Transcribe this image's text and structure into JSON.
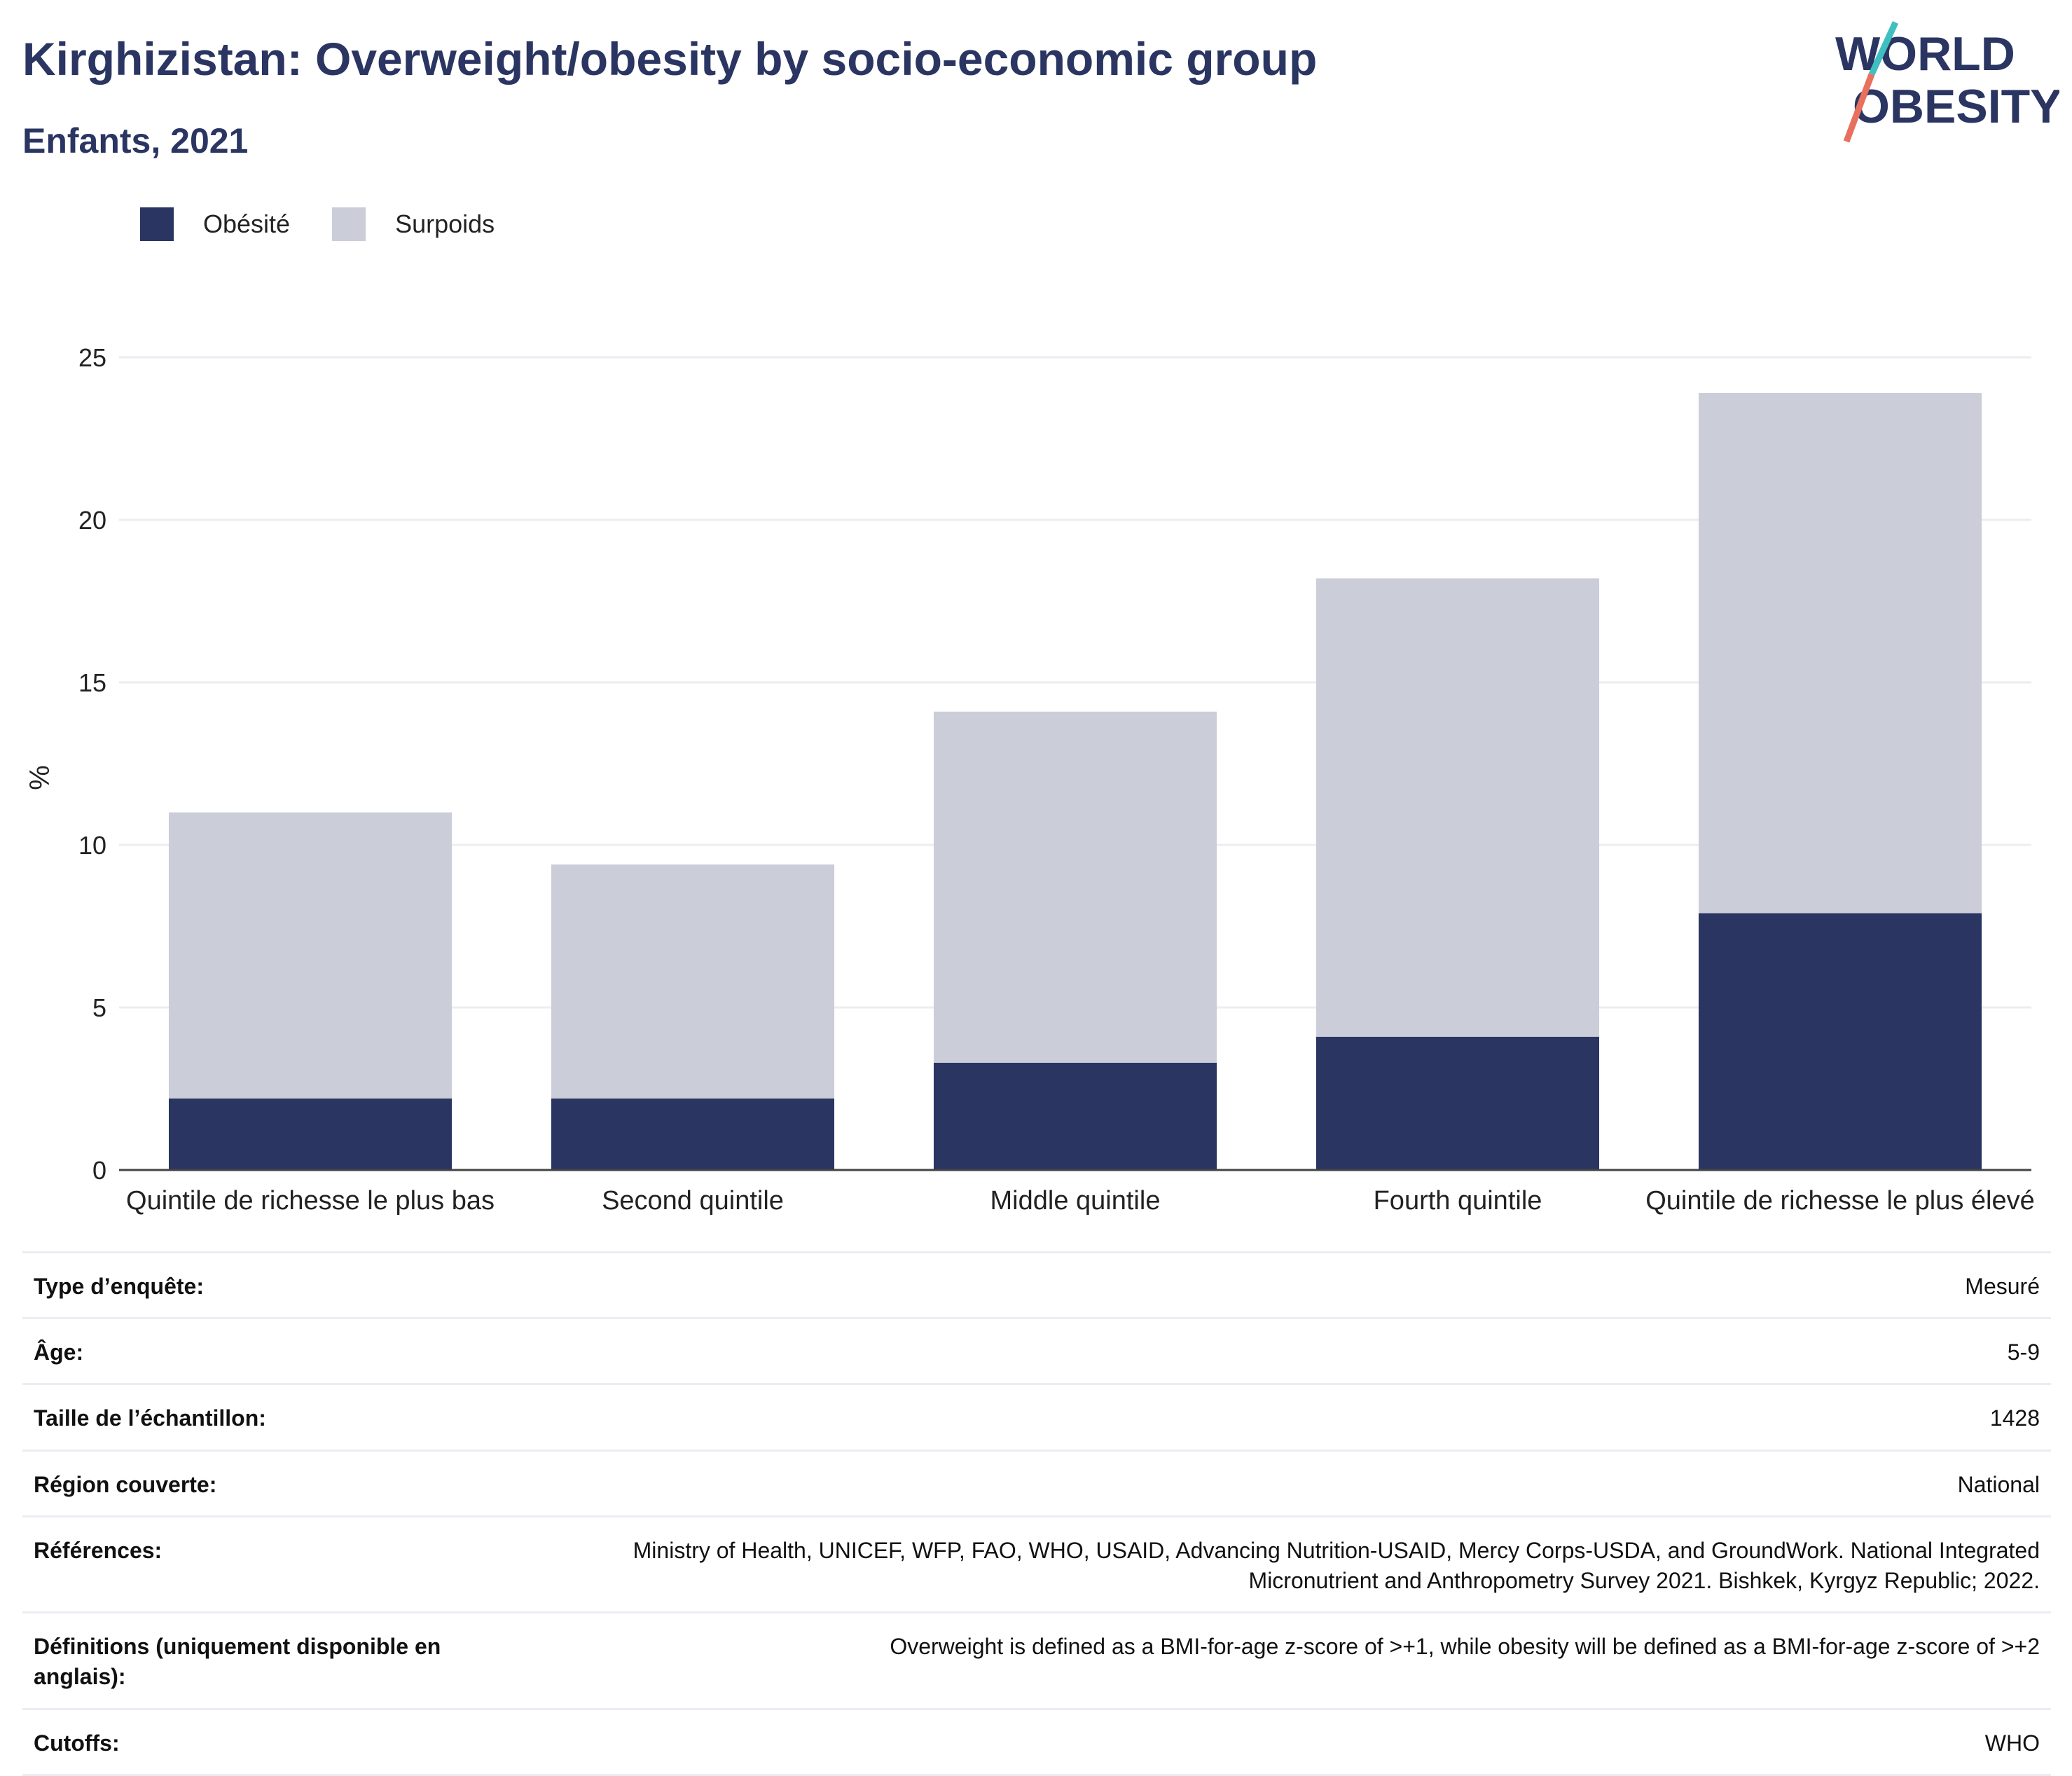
{
  "title": "Kirghizistan: Overweight/obesity by socio-economic group",
  "subtitle": "Enfants, 2021",
  "logo": {
    "line1": "WORLD",
    "line2": "OBESITY"
  },
  "colors": {
    "obesity": "#2a3562",
    "overweight": "#cbcdd9",
    "title": "#2a3562",
    "logo_teal": "#3fbfc0",
    "logo_coral": "#e8705e"
  },
  "chart_data": {
    "type": "bar",
    "stacked": true,
    "categories": [
      "Quintile de richesse le plus bas",
      "Second quintile",
      "Middle quintile",
      "Fourth quintile",
      "Quintile de richesse le plus élevé"
    ],
    "series": [
      {
        "name": "Obésité",
        "values": [
          2.2,
          2.2,
          3.3,
          4.1,
          7.9
        ]
      },
      {
        "name": "Surpoids",
        "values": [
          8.8,
          7.2,
          10.8,
          14.1,
          16.0
        ]
      }
    ],
    "ylabel": "%",
    "xlabel": "",
    "ylim": [
      0,
      25
    ],
    "yticks": [
      0,
      5,
      10,
      15,
      20,
      25
    ],
    "grid": true,
    "legend_position": "top-left"
  },
  "info": [
    {
      "label": "Type d’enquête:",
      "value": "Mesuré"
    },
    {
      "label": "Âge:",
      "value": "5-9"
    },
    {
      "label": "Taille de l’échantillon:",
      "value": "1428"
    },
    {
      "label": "Région couverte:",
      "value": "National"
    },
    {
      "label": "Références:",
      "value": "Ministry of Health, UNICEF, WFP, FAO, WHO, USAID, Advancing Nutrition-USAID, Mercy Corps-USDA, and GroundWork. National Integrated Micronutrient and Anthropometry Survey 2021. Bishkek, Kyrgyz Republic; 2022."
    },
    {
      "label": "Définitions (uniquement disponible en anglais):",
      "value": "Overweight is defined as a BMI-for-age z-score of >+1, while obesity will be defined as a BMI-for-age z-score of >+2"
    },
    {
      "label": "Cutoffs:",
      "value": "WHO"
    }
  ]
}
